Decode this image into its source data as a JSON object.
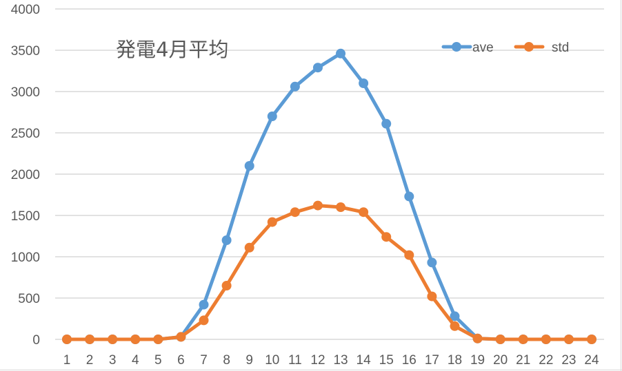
{
  "chart_data": {
    "type": "line",
    "title": "発電4月平均",
    "xlabel": "",
    "ylabel": "",
    "x": [
      1,
      2,
      3,
      4,
      5,
      6,
      7,
      8,
      9,
      10,
      11,
      12,
      13,
      14,
      15,
      16,
      17,
      18,
      19,
      20,
      21,
      22,
      23,
      24
    ],
    "categories": [
      "1",
      "2",
      "3",
      "4",
      "5",
      "6",
      "7",
      "8",
      "9",
      "10",
      "11",
      "12",
      "13",
      "14",
      "15",
      "16",
      "17",
      "18",
      "19",
      "20",
      "21",
      "22",
      "23",
      "24"
    ],
    "series": [
      {
        "name": "ave",
        "color": "#5b9bd5",
        "values": [
          0,
          0,
          0,
          0,
          0,
          30,
          420,
          1200,
          2100,
          2700,
          3060,
          3290,
          3460,
          3100,
          2610,
          1730,
          930,
          280,
          10,
          0,
          0,
          0,
          0,
          0
        ]
      },
      {
        "name": "std",
        "color": "#ed7d31",
        "values": [
          0,
          0,
          0,
          0,
          0,
          30,
          230,
          650,
          1110,
          1420,
          1540,
          1620,
          1600,
          1540,
          1240,
          1020,
          520,
          160,
          10,
          0,
          0,
          0,
          0,
          0
        ]
      }
    ],
    "ylim": [
      0,
      4000
    ],
    "yticks": [
      0,
      500,
      1000,
      1500,
      2000,
      2500,
      3000,
      3500,
      4000
    ],
    "grid": true,
    "legend_position": "top-right",
    "markers": true
  },
  "colors": {
    "grid": "#d9d9d9",
    "text": "#595959",
    "background": "#ffffff"
  }
}
